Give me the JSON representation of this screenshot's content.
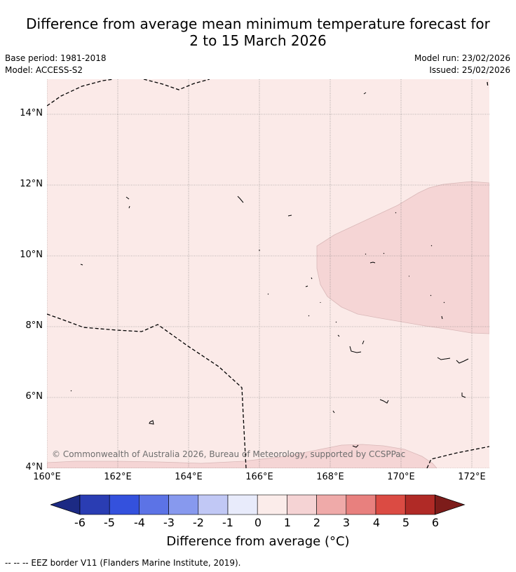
{
  "title_line1": "Difference from average mean minimum temperature forecast for",
  "title_line2": "2 to 15 March 2026",
  "base_period": "Base period: 1981-2018",
  "model": "Model: ACCESS-S2",
  "model_run": "Model run: 23/02/2026",
  "issued": "Issued: 25/02/2026",
  "lat_labels": [
    "14°N",
    "12°N",
    "10°N",
    "8°N",
    "6°N",
    "4°N"
  ],
  "lon_labels": [
    "160°E",
    "162°E",
    "164°E",
    "166°E",
    "168°E",
    "170°E",
    "172°E"
  ],
  "copyright": "© Commonwealth of Australia 2026, Bureau of Meteorology, supported by CCSPPac",
  "colorbar": {
    "ticks": [
      "-6",
      "-5",
      "-4",
      "-3",
      "-2",
      "-1",
      "0",
      "1",
      "2",
      "3",
      "4",
      "5",
      "6"
    ],
    "colors": [
      "#1c2a84",
      "#2a3db3",
      "#3451dd",
      "#5c73e6",
      "#8799ee",
      "#c1c8f5",
      "#e8ebfb",
      "#fbecea",
      "#f5d3d4",
      "#efaaa9",
      "#e8807e",
      "#db4b43",
      "#b02a26",
      "#7d1c1a"
    ],
    "title": "Difference from average (°C)"
  },
  "map_colors": {
    "background": "#fbeae8",
    "anomaly_1_2": "#f5d5d5"
  },
  "footer": "-- -- -- EEZ border V11 (Flanders Marine Institute, 2019)."
}
